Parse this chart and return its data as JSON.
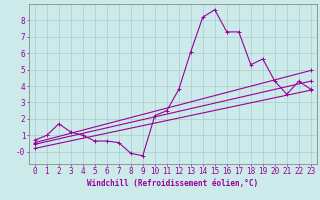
{
  "background_color": "#cceaea",
  "line_color": "#990099",
  "grid_color": "#aacccc",
  "spine_color": "#888888",
  "xlabel": "Windchill (Refroidissement éolien,°C)",
  "xlabel_fontsize": 5.5,
  "tick_fontsize": 5.5,
  "xlim": [
    -0.5,
    23.5
  ],
  "ylim": [
    -0.75,
    9.0
  ],
  "yticks": [
    0,
    1,
    2,
    3,
    4,
    5,
    6,
    7,
    8
  ],
  "ytick_labels": [
    "-0",
    "1",
    "2",
    "3",
    "4",
    "5",
    "6",
    "7",
    "8"
  ],
  "xticks": [
    0,
    1,
    2,
    3,
    4,
    5,
    6,
    7,
    8,
    9,
    10,
    11,
    12,
    13,
    14,
    15,
    16,
    17,
    18,
    19,
    20,
    21,
    22,
    23
  ],
  "series1_x": [
    0,
    1,
    2,
    3,
    4,
    5,
    6,
    7,
    8,
    9,
    10,
    11,
    12,
    13,
    14,
    15,
    16,
    17,
    18,
    19,
    20,
    21,
    22,
    23
  ],
  "series1_y": [
    0.7,
    1.0,
    1.7,
    1.2,
    1.0,
    0.65,
    0.65,
    0.55,
    -0.1,
    -0.25,
    2.2,
    2.5,
    3.8,
    6.1,
    8.2,
    8.65,
    7.3,
    7.3,
    5.3,
    5.65,
    4.3,
    3.5,
    4.3,
    3.8
  ],
  "series2_x": [
    0,
    23
  ],
  "series2_y": [
    0.55,
    4.95
  ],
  "series3_x": [
    0,
    23
  ],
  "series3_y": [
    0.45,
    4.3
  ],
  "series4_x": [
    0,
    23
  ],
  "series4_y": [
    0.2,
    3.75
  ]
}
